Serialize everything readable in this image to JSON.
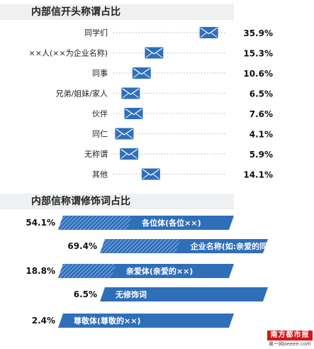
{
  "chart_data": [
    {
      "type": "scatter",
      "title": "内部信开头称谓占比",
      "categories": [
        "同学们",
        "××人(××为企业名称)",
        "同事",
        "兄弟/姐妹/家人",
        "伙伴",
        "同仁",
        "无称谓",
        "其他"
      ],
      "values": [
        35.9,
        15.3,
        10.6,
        6.5,
        7.6,
        4.1,
        5.9,
        14.1
      ],
      "value_labels": [
        "35.9%",
        "15.3%",
        "10.6%",
        "6.5%",
        "7.6%",
        "4.1%",
        "5.9%",
        "14.1%"
      ],
      "marker": "envelope-icon",
      "xlim": [
        0,
        40
      ],
      "grid": false
    },
    {
      "type": "bar",
      "orientation": "horizontal",
      "title": "内部信称谓修饰词占比",
      "categories": [
        "各位体",
        "企业名称",
        "亲爱体",
        "无修饰词",
        "尊敬体"
      ],
      "category_notes": [
        "(各位××)",
        "(如:亲爱的同学们)",
        "(亲爱的××)",
        "",
        "(尊敬的××)"
      ],
      "values": [
        54.1,
        69.4,
        18.8,
        6.5,
        2.4
      ],
      "value_labels": [
        "54.1%",
        "69.4%",
        "18.8%",
        "6.5%",
        "2.4%"
      ],
      "bar_color": "#2f6fba"
    }
  ],
  "logo": {
    "name": "南方都市报",
    "site": "奥一网oeeee.com",
    "color": "#d6171b"
  }
}
